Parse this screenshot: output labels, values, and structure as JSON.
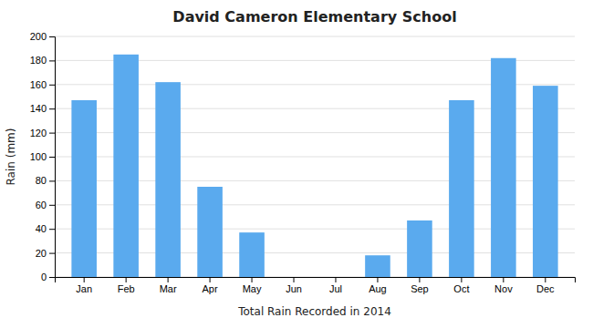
{
  "chart_data": {
    "type": "bar",
    "title": "David Cameron Elementary School",
    "xlabel": "Total Rain Recorded in 2014",
    "ylabel": "Rain (mm)",
    "categories": [
      "Jan",
      "Feb",
      "Mar",
      "Apr",
      "May",
      "Jun",
      "Jul",
      "Aug",
      "Sep",
      "Oct",
      "Nov",
      "Dec"
    ],
    "values": [
      147,
      185,
      162,
      75,
      37,
      0,
      0,
      18,
      47,
      147,
      182,
      159
    ],
    "color": "#5aaaee",
    "ylim": [
      0,
      200
    ],
    "yticks": [
      0,
      20,
      40,
      60,
      80,
      100,
      120,
      140,
      160,
      180,
      200
    ],
    "grid": true
  }
}
